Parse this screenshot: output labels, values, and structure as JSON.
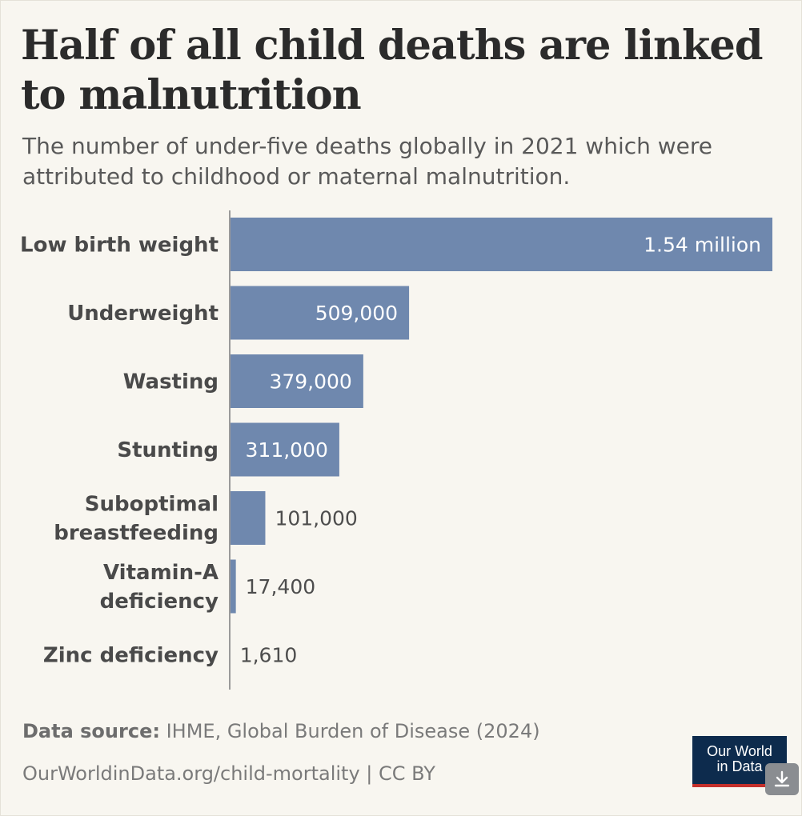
{
  "title": "Half of all child deaths are linked to malnutrition",
  "subtitle": "The number of under-five deaths globally in 2021 which were attributed to childhood or maternal malnutrition.",
  "chart_data": {
    "type": "bar",
    "orientation": "horizontal",
    "title": "Half of all child deaths are linked to malnutrition",
    "categories": [
      [
        "Low birth weight"
      ],
      [
        "Underweight"
      ],
      [
        "Wasting"
      ],
      [
        "Stunting"
      ],
      [
        "Suboptimal",
        "breastfeeding"
      ],
      [
        "Vitamin-A",
        "deficiency"
      ],
      [
        "Zinc deficiency"
      ]
    ],
    "values": [
      1540000,
      509000,
      379000,
      311000,
      101000,
      17400,
      1610
    ],
    "value_labels": [
      "1.54 million",
      "509,000",
      "379,000",
      "311,000",
      "101,000",
      "17,400",
      "1,610"
    ],
    "xlim": [
      0,
      1540000
    ],
    "bar_color": "#6f88ae",
    "xlabel": "",
    "ylabel": ""
  },
  "footer": {
    "source_label": "Data source:",
    "source_text": "IHME, Global Burden of Disease (2024)",
    "link": "OurWorldinData.org/child-mortality | CC BY"
  },
  "logo": {
    "line1": "Our World",
    "line2": "in Data"
  },
  "download_icon": "download-icon",
  "colors": {
    "background": "#f8f6f0",
    "logo_bg": "#0d2b4d",
    "logo_accent": "#c4302b"
  }
}
